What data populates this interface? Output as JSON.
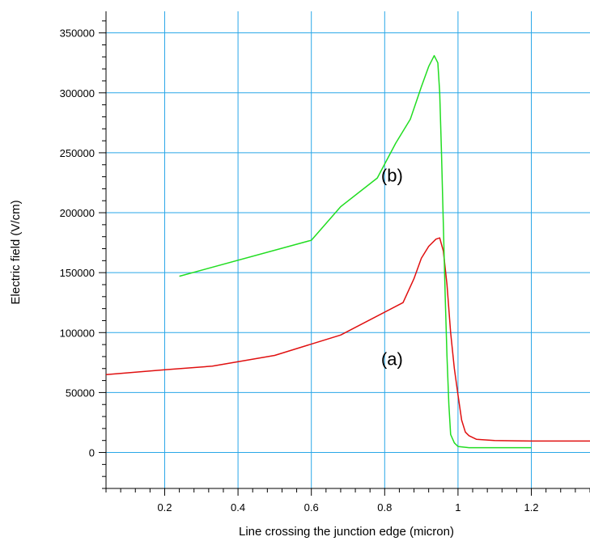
{
  "chart_data": {
    "type": "line",
    "title": "",
    "xlabel": "Line crossing the junction edge (micron)",
    "ylabel": "Electric field (V/cm)",
    "xlim": [
      0.04,
      1.36
    ],
    "ylim": [
      -30000,
      368000
    ],
    "x_ticks": [
      0.2,
      0.4,
      0.6,
      0.8,
      1,
      1.2
    ],
    "x_tick_labels": [
      "0.2",
      "0.4",
      "0.6",
      "0.8",
      "1",
      "1.2"
    ],
    "y_ticks": [
      0,
      50000,
      100000,
      150000,
      200000,
      250000,
      300000,
      350000
    ],
    "y_tick_labels": [
      "0",
      "50000",
      "100000",
      "150000",
      "200000",
      "250000",
      "300000",
      "350000"
    ],
    "grid": true,
    "grid_color": "#2aa7e8",
    "series": [
      {
        "name": "(a)",
        "color": "#e01010",
        "x": [
          0.04,
          0.2,
          0.33,
          0.5,
          0.68,
          0.85,
          0.88,
          0.9,
          0.92,
          0.94,
          0.95,
          0.96,
          0.97,
          0.98,
          0.99,
          1.0,
          1.01,
          1.02,
          1.03,
          1.05,
          1.1,
          1.2,
          1.36
        ],
        "values": [
          65000,
          69000,
          72000,
          81000,
          98000,
          125000,
          145000,
          162000,
          172000,
          178000,
          179000,
          168000,
          140000,
          100000,
          70000,
          48000,
          27000,
          17000,
          14000,
          11000,
          10000,
          9500,
          9500
        ]
      },
      {
        "name": "(b)",
        "color": "#22dd22",
        "x": [
          0.24,
          0.6,
          0.68,
          0.78,
          0.83,
          0.87,
          0.9,
          0.92,
          0.935,
          0.945,
          0.95,
          0.955,
          0.96,
          0.965,
          0.97,
          0.975,
          0.98,
          0.99,
          1.0,
          1.03,
          1.2
        ],
        "values": [
          147000,
          177000,
          205000,
          229000,
          258000,
          278000,
          305000,
          322000,
          331000,
          325000,
          300000,
          250000,
          190000,
          130000,
          80000,
          40000,
          15000,
          8000,
          5000,
          4000,
          4000
        ]
      }
    ],
    "annotations": [
      {
        "text": "(b)",
        "x": 0.82,
        "y": 226000
      },
      {
        "text": "(a)",
        "x": 0.82,
        "y": 73000
      }
    ]
  }
}
